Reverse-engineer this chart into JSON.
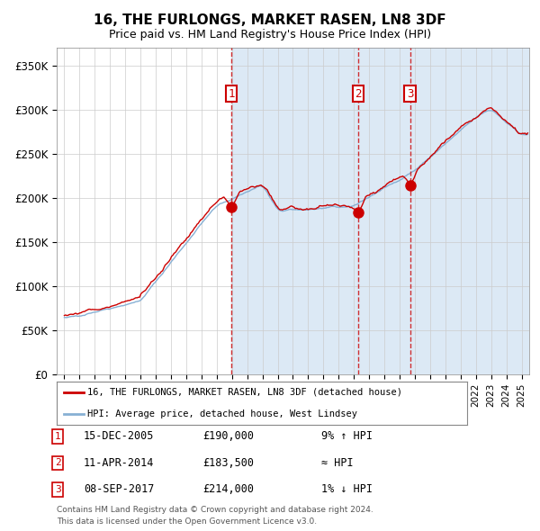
{
  "title": "16, THE FURLONGS, MARKET RASEN, LN8 3DF",
  "subtitle": "Price paid vs. HM Land Registry's House Price Index (HPI)",
  "legend_line1": "16, THE FURLONGS, MARKET RASEN, LN8 3DF (detached house)",
  "legend_line2": "HPI: Average price, detached house, West Lindsey",
  "sale1_date": "15-DEC-2005",
  "sale1_price": 190000,
  "sale1_note": "9% ↑ HPI",
  "sale2_date": "11-APR-2014",
  "sale2_price": 183500,
  "sale2_note": "≈ HPI",
  "sale3_date": "08-SEP-2017",
  "sale3_price": 214000,
  "sale3_note": "1% ↓ HPI",
  "footer1": "Contains HM Land Registry data © Crown copyright and database right 2024.",
  "footer2": "This data is licensed under the Open Government Licence v3.0.",
  "red_line_color": "#cc0000",
  "blue_line_color": "#87b0d4",
  "shading_color": "#dce9f5",
  "background_color": "#ffffff",
  "grid_color": "#cccccc",
  "sale_marker_color": "#cc0000",
  "vline_color": "#cc0000",
  "box_color": "#cc0000",
  "ylim": [
    0,
    370000
  ],
  "yticks": [
    0,
    50000,
    100000,
    150000,
    200000,
    250000,
    300000,
    350000
  ],
  "ytick_labels": [
    "£0",
    "£50K",
    "£100K",
    "£150K",
    "£200K",
    "£250K",
    "£300K",
    "£350K"
  ],
  "sale1_x": 2005.96,
  "sale2_x": 2014.27,
  "sale3_x": 2017.69,
  "xmin": 1994.5,
  "xmax": 2025.5
}
